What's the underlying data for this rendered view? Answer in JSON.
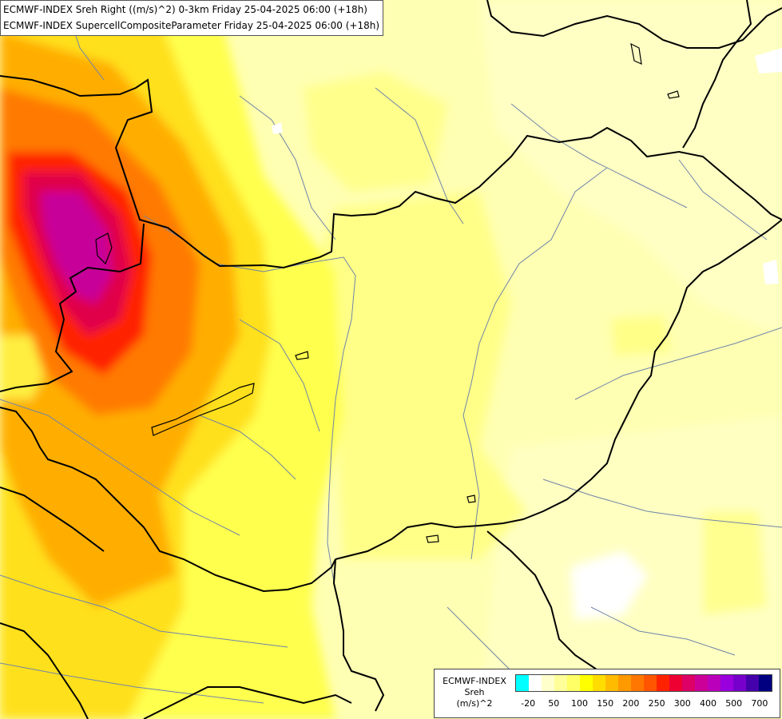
{
  "titles": [
    "ECMWF-INDEX Sreh Right ((m/s)^2) 0-3km Friday 25-04-2025 06:00 (+18h)",
    "ECMWF-INDEX SupercellCompositeParameter Friday 25-04-2025 06:00 (+18h)"
  ],
  "legend": {
    "line1": "ECMWF-INDEX",
    "line2": "Sreh",
    "line3": "(m/s)^2",
    "colors": [
      "#00ffff",
      "#ffffff",
      "#ffffcc",
      "#ffff99",
      "#ffff66",
      "#ffff00",
      "#ffdd00",
      "#ffbb00",
      "#ff9900",
      "#ff7700",
      "#ff5500",
      "#ff2200",
      "#ee0033",
      "#dd0066",
      "#cc0099",
      "#bb00bb",
      "#9900dd",
      "#7700cc",
      "#4400aa",
      "#000080"
    ],
    "ticks": [
      {
        "label": "-20",
        "at": 1
      },
      {
        "label": "50",
        "at": 3
      },
      {
        "label": "100",
        "at": 5
      },
      {
        "label": "150",
        "at": 7
      },
      {
        "label": "200",
        "at": 9
      },
      {
        "label": "250",
        "at": 11
      },
      {
        "label": "300",
        "at": 13
      },
      {
        "label": "400",
        "at": 15
      },
      {
        "label": "500",
        "at": 17
      },
      {
        "label": "700",
        "at": 19
      }
    ]
  }
}
